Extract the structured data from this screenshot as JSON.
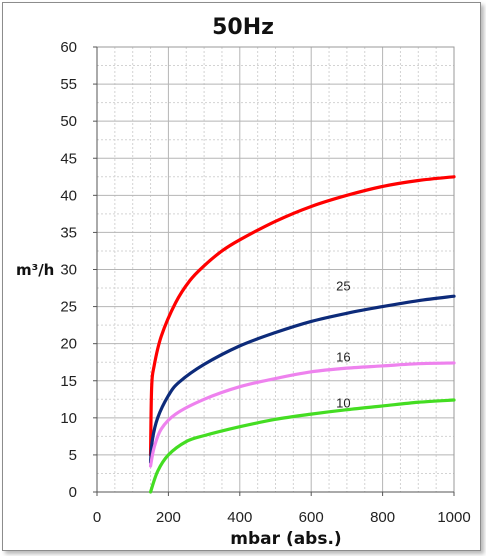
{
  "chart_data": {
    "type": "line",
    "title": "50Hz",
    "xlabel": "mbar (abs.)",
    "ylabel": "m³/h",
    "xlim": [
      0,
      1000
    ],
    "ylim": [
      0,
      60
    ],
    "x_ticks": [
      0,
      200,
      400,
      600,
      800,
      1000
    ],
    "y_ticks": [
      0,
      5,
      10,
      15,
      20,
      25,
      30,
      35,
      40,
      45,
      50,
      55,
      60
    ],
    "x_minor_step": 50,
    "y_minor_step": 2.5,
    "grid": true,
    "legend": "none",
    "series": [
      {
        "color": "#ff0000",
        "points": [
          [
            150,
            5
          ],
          [
            153,
            14
          ],
          [
            160,
            17
          ],
          [
            180,
            21
          ],
          [
            220,
            25.5
          ],
          [
            260,
            28.5
          ],
          [
            300,
            30.5
          ],
          [
            350,
            32.5
          ],
          [
            400,
            34
          ],
          [
            500,
            36.5
          ],
          [
            600,
            38.5
          ],
          [
            700,
            40
          ],
          [
            800,
            41.2
          ],
          [
            900,
            42
          ],
          [
            1000,
            42.5
          ]
        ]
      },
      {
        "name": "25",
        "color": "#0d2b7a",
        "points": [
          [
            150,
            4
          ],
          [
            155,
            7
          ],
          [
            170,
            10
          ],
          [
            200,
            13
          ],
          [
            230,
            14.8
          ],
          [
            300,
            17.2
          ],
          [
            400,
            19.7
          ],
          [
            500,
            21.5
          ],
          [
            600,
            23
          ],
          [
            700,
            24.1
          ],
          [
            800,
            25
          ],
          [
            900,
            25.8
          ],
          [
            1000,
            26.4
          ]
        ]
      },
      {
        "name": "16",
        "color": "#ee82ee",
        "points": [
          [
            150,
            3.5
          ],
          [
            160,
            6
          ],
          [
            180,
            8.5
          ],
          [
            220,
            10.5
          ],
          [
            300,
            12.5
          ],
          [
            400,
            14.2
          ],
          [
            500,
            15.3
          ],
          [
            600,
            16.2
          ],
          [
            700,
            16.7
          ],
          [
            800,
            17
          ],
          [
            900,
            17.3
          ],
          [
            1000,
            17.4
          ]
        ]
      },
      {
        "name": "10",
        "color": "#44dd22",
        "points": [
          [
            150,
            0
          ],
          [
            170,
            2.8
          ],
          [
            200,
            5
          ],
          [
            250,
            6.8
          ],
          [
            300,
            7.6
          ],
          [
            400,
            8.8
          ],
          [
            500,
            9.8
          ],
          [
            600,
            10.5
          ],
          [
            700,
            11.1
          ],
          [
            800,
            11.6
          ],
          [
            900,
            12.1
          ],
          [
            1000,
            12.4
          ]
        ]
      }
    ],
    "series_labels": [
      {
        "text": "25",
        "x": 690,
        "y": 27.2
      },
      {
        "text": "16",
        "x": 690,
        "y": 17.6
      },
      {
        "text": "10",
        "x": 690,
        "y": 11.4
      }
    ]
  }
}
